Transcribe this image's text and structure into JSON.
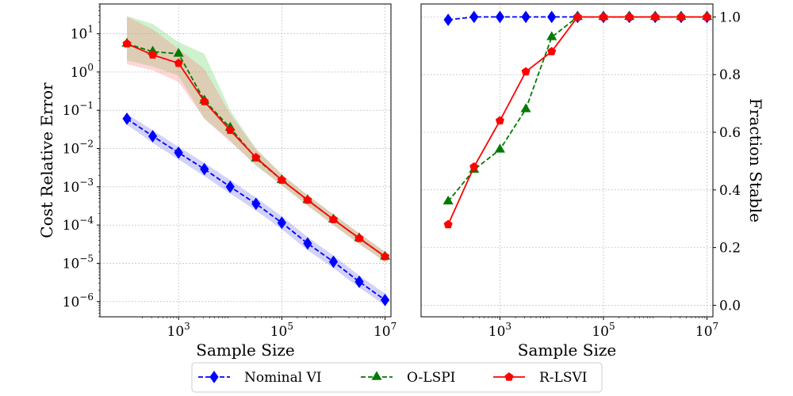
{
  "colors": {
    "nominal": "#0000ff",
    "olspi": "#007a00",
    "rlsvi": "#ff0000",
    "nominal_band": "#6a6aee",
    "olspi_band": "#5ccf5c",
    "rlsvi_band": "#ff7a7a",
    "grid": "#b0b0b0"
  },
  "legend": {
    "entries": [
      {
        "label": "Nominal VI",
        "series": "nominal"
      },
      {
        "label": "O-LSPI",
        "series": "olspi"
      },
      {
        "label": "R-LSVI",
        "series": "rlsvi"
      }
    ]
  },
  "chart_data": [
    {
      "type": "line",
      "xlabel": "Sample Size",
      "ylabel": "Cost Relative Error",
      "xscale": "log",
      "yscale": "log",
      "xlim": [
        30,
        13000000
      ],
      "ylim": [
        4e-07,
        60
      ],
      "xticks": [
        {
          "value": 1000,
          "base": "10",
          "exp": "3"
        },
        {
          "value": 100000,
          "base": "10",
          "exp": "5"
        },
        {
          "value": 10000000,
          "base": "10",
          "exp": "7"
        }
      ],
      "yticks": [
        {
          "value": 1e-06,
          "base": "10",
          "exp": "−6"
        },
        {
          "value": 1e-05,
          "base": "10",
          "exp": "−5"
        },
        {
          "value": 0.0001,
          "base": "10",
          "exp": "−4"
        },
        {
          "value": 0.001,
          "base": "10",
          "exp": "−3"
        },
        {
          "value": 0.01,
          "base": "10",
          "exp": "−2"
        },
        {
          "value": 0.1,
          "base": "10",
          "exp": "−1"
        },
        {
          "value": 1,
          "base": "10",
          "exp": "0"
        },
        {
          "value": 10,
          "base": "10",
          "exp": "1"
        }
      ],
      "x": [
        100,
        316,
        1000,
        3162,
        10000,
        31623,
        100000,
        316228,
        1000000,
        3162278,
        10000000
      ],
      "series": [
        {
          "name": "Nominal VI",
          "key": "nominal",
          "linestyle": "dashed",
          "marker": "diamond",
          "values": [
            0.06,
            0.021,
            0.0078,
            0.0029,
            0.001,
            0.00036,
            0.000115,
            3.3e-05,
            1.1e-05,
            3.3e-06,
            1.1e-06
          ],
          "lower": [
            0.042,
            0.014,
            0.0052,
            0.0019,
            0.00067,
            0.00024,
            7.8e-05,
            2.2e-05,
            7.5e-06,
            2.3e-06,
            8e-07
          ],
          "upper": [
            0.08,
            0.03,
            0.011,
            0.0042,
            0.0015,
            0.00052,
            0.00017,
            4.8e-05,
            1.6e-05,
            4.8e-06,
            1.6e-06
          ]
        },
        {
          "name": "O-LSPI",
          "key": "olspi",
          "linestyle": "dashed",
          "marker": "triangle",
          "values": [
            5.5,
            3.4,
            3.0,
            0.18,
            0.035,
            0.0055,
            0.0015,
            0.00045,
            0.00014,
            4.5e-05,
            1.5e-05
          ],
          "lower": [
            2.0,
            1.4,
            0.8,
            0.06,
            0.016,
            0.0035,
            0.0011,
            0.00032,
            0.0001,
            3.2e-05,
            1.1e-05
          ],
          "upper": [
            29,
            18,
            6.0,
            3.0,
            0.1,
            0.01,
            0.0021,
            0.0006,
            0.00019,
            6.1e-05,
            2e-05
          ]
        },
        {
          "name": "R-LSVI",
          "key": "rlsvi",
          "linestyle": "solid",
          "marker": "pentagon",
          "values": [
            5.5,
            2.8,
            1.7,
            0.17,
            0.03,
            0.0058,
            0.0015,
            0.00045,
            0.00014,
            4.5e-05,
            1.5e-05
          ],
          "lower": [
            1.6,
            1.1,
            0.55,
            0.06,
            0.015,
            0.0037,
            0.0011,
            0.00032,
            0.0001,
            3.2e-05,
            1.1e-05
          ],
          "upper": [
            28,
            13,
            4.0,
            1.2,
            0.08,
            0.0095,
            0.0021,
            0.0006,
            0.00019,
            6.1e-05,
            2e-05
          ]
        }
      ]
    },
    {
      "type": "line",
      "xlabel": "Sample Size",
      "ylabel": "Fraction Stable",
      "ylabel_position": "right",
      "xscale": "log",
      "yscale": "linear",
      "xlim": [
        30,
        13000000
      ],
      "ylim": [
        -0.04,
        1.045
      ],
      "xticks": [
        {
          "value": 1000,
          "base": "10",
          "exp": "3"
        },
        {
          "value": 100000,
          "base": "10",
          "exp": "5"
        },
        {
          "value": 10000000,
          "base": "10",
          "exp": "7"
        }
      ],
      "yticks": [
        {
          "value": 0.0,
          "label": "0.0"
        },
        {
          "value": 0.2,
          "label": "0.2"
        },
        {
          "value": 0.4,
          "label": "0.4"
        },
        {
          "value": 0.6,
          "label": "0.6"
        },
        {
          "value": 0.8,
          "label": "0.8"
        },
        {
          "value": 1.0,
          "label": "1.0"
        }
      ],
      "x": [
        100,
        316,
        1000,
        3162,
        10000,
        31623,
        100000,
        316228,
        1000000,
        3162278,
        10000000
      ],
      "series": [
        {
          "name": "Nominal VI",
          "key": "nominal",
          "linestyle": "dashed",
          "marker": "diamond",
          "values": [
            0.99,
            1.0,
            1.0,
            1.0,
            1.0,
            1.0,
            1.0,
            1.0,
            1.0,
            1.0,
            1.0
          ]
        },
        {
          "name": "O-LSPI",
          "key": "olspi",
          "linestyle": "dashed",
          "marker": "triangle",
          "values": [
            0.36,
            0.47,
            0.54,
            0.68,
            0.93,
            1.0,
            1.0,
            1.0,
            1.0,
            1.0,
            1.0
          ]
        },
        {
          "name": "R-LSVI",
          "key": "rlsvi",
          "linestyle": "solid",
          "marker": "pentagon",
          "values": [
            0.28,
            0.48,
            0.64,
            0.81,
            0.88,
            1.0,
            1.0,
            1.0,
            1.0,
            1.0,
            1.0
          ]
        }
      ]
    }
  ]
}
